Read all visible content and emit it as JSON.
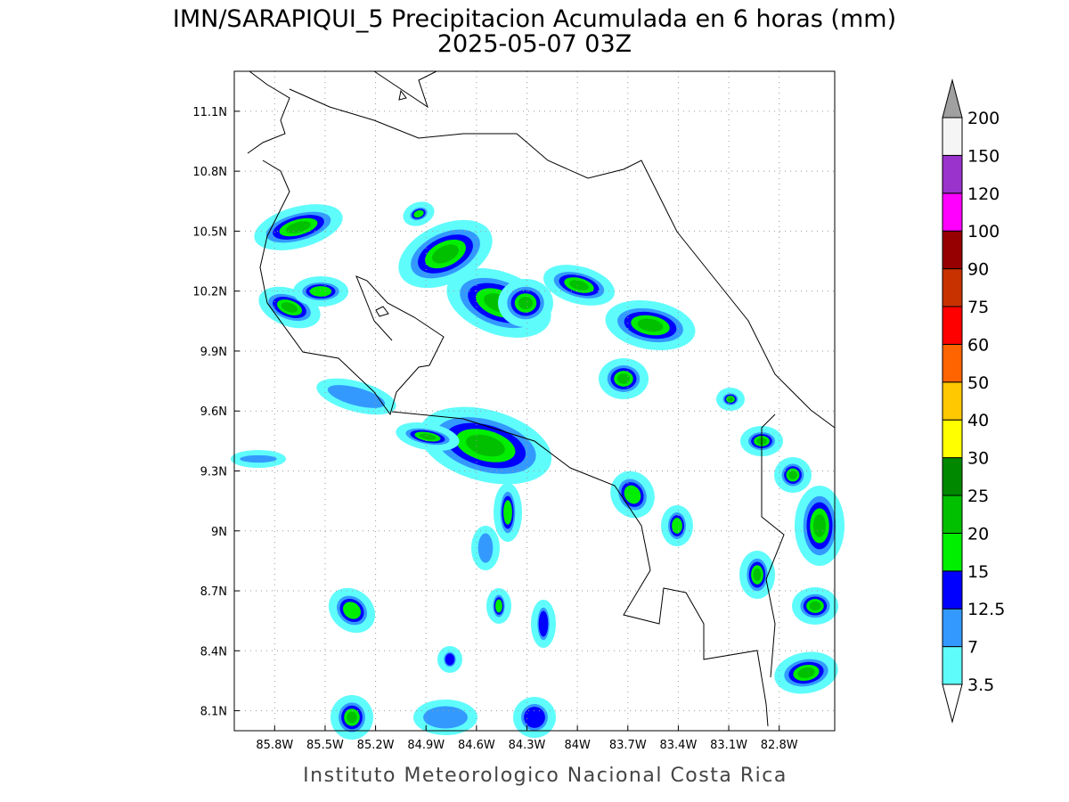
{
  "title": "IMN/SARAPIQUI_5 Precipitacion Acumulada en 6 horas (mm)",
  "subtitle": "2025-05-07 03Z",
  "map": {
    "lon_range": [
      -86.04,
      -82.47
    ],
    "lat_range": [
      8.0,
      11.3
    ],
    "lon_ticks": [
      {
        "value": -85.8,
        "label": "85.8W"
      },
      {
        "value": -85.5,
        "label": "85.5W"
      },
      {
        "value": -85.2,
        "label": "85.2W"
      },
      {
        "value": -84.9,
        "label": "84.9W"
      },
      {
        "value": -84.6,
        "label": "84.6W"
      },
      {
        "value": -84.3,
        "label": "84.3W"
      },
      {
        "value": -84.0,
        "label": "84W"
      },
      {
        "value": -83.7,
        "label": "83.7W"
      },
      {
        "value": -83.4,
        "label": "83.4W"
      },
      {
        "value": -83.1,
        "label": "83.1W"
      },
      {
        "value": -82.8,
        "label": "82.8W"
      }
    ],
    "lat_ticks": [
      {
        "value": 8.1,
        "label": "8.1N"
      },
      {
        "value": 8.4,
        "label": "8.4N"
      },
      {
        "value": 8.7,
        "label": "8.7N"
      },
      {
        "value": 9.0,
        "label": "9N"
      },
      {
        "value": 9.3,
        "label": "9.3N"
      },
      {
        "value": 9.6,
        "label": "9.6N"
      },
      {
        "value": 9.9,
        "label": "9.9N"
      },
      {
        "value": 10.2,
        "label": "10.2N"
      },
      {
        "value": 10.5,
        "label": "10.5N"
      },
      {
        "value": 10.8,
        "label": "10.8N"
      },
      {
        "value": 11.1,
        "label": "11.1N"
      }
    ]
  },
  "colorbar": {
    "levels": [
      3.5,
      7,
      12.5,
      15,
      20,
      25,
      30,
      40,
      50,
      60,
      75,
      90,
      100,
      120,
      150,
      200
    ],
    "colors": [
      "#5ffcfc",
      "#3399ff",
      "#0000ff",
      "#00ee00",
      "#00c000",
      "#008800",
      "#ffff00",
      "#ffc800",
      "#ff6400",
      "#ff0000",
      "#c83200",
      "#960000",
      "#ff00ff",
      "#9933cc",
      "#f5f5f5"
    ],
    "under_color": "#ffffff",
    "over_color": "#a0a0a0"
  },
  "footer": "Instituto Meteorologico Nacional Costa Rica"
}
